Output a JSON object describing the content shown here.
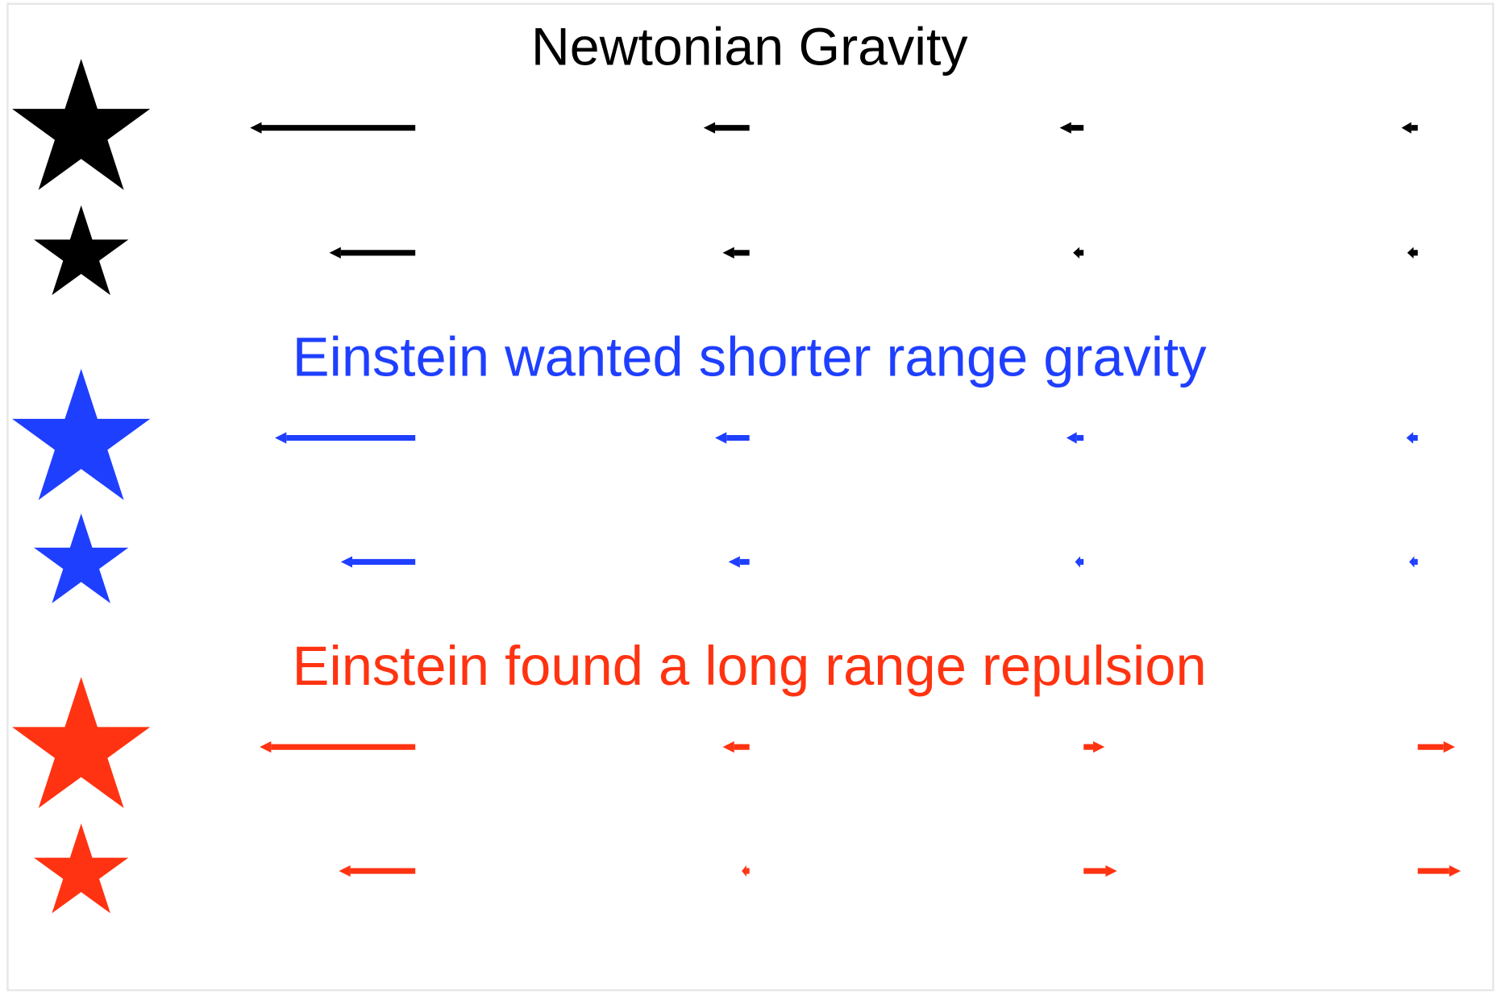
{
  "sections": [
    {
      "title": "Newtonian Gravity",
      "color": "#000000"
    },
    {
      "title": "Einstein wanted shorter range gravity",
      "color": "#1f3fff"
    },
    {
      "title": "Einstein found a long range repulsion",
      "color": "#ff3311"
    }
  ]
}
